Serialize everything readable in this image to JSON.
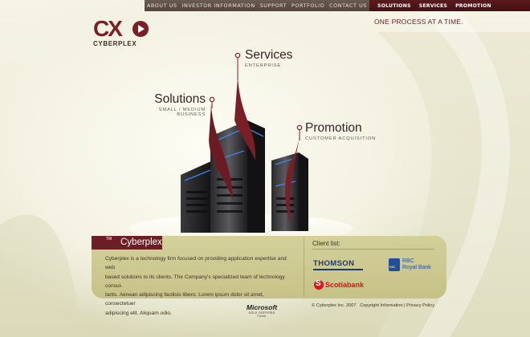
{
  "nav": {
    "left_items": [
      "ABOUT US",
      "INVESTOR INFORMATION",
      "SUPPORT",
      "PORTFOLIO",
      "CONTACT US"
    ],
    "right_items": [
      "SOLUTIONS",
      "SERVICES",
      "PROMOTION"
    ]
  },
  "header": {
    "tagline": "ONE PROCESS AT A TIME."
  },
  "logo": {
    "mark": "CX",
    "wordmark": "CYBERPLEX"
  },
  "offerings": {
    "services": {
      "title": "Services",
      "subtitle": "ENTERPRISE"
    },
    "solutions": {
      "title": "Solutions",
      "subtitle": "SMALL / MEDIUM BUSINESS"
    },
    "promotion": {
      "title": "Promotion",
      "subtitle": "CUSTOMER ACQUISITION"
    }
  },
  "about": {
    "title": "Cyberplex",
    "title_mark": "TM",
    "lines": [
      "Cyberplex is a technology firm focused on providing application expertise and web",
      "based solutions to its clients. The Company's specialized team of technology consul-",
      "tants. Aenean adipiscing facilisis libero. Lorem ipsum dolor sit amet, consectetuer",
      "adipiscing elit. Aliquam odio."
    ]
  },
  "clients": {
    "title": "Client list:",
    "thomson": "THOMSON",
    "rbc_line1": "RBC",
    "rbc_line2": "Royal Bank",
    "rbc_badge": "RBC",
    "scotiabank": "Scotiabank"
  },
  "footer": {
    "copyright": "© Cyberplex Inc. 2007",
    "link_copyright": "Copyright Information",
    "separator": "|",
    "link_privacy": "Privacy Policy"
  },
  "partner": {
    "brand": "Microsoft",
    "cert": "GOLD CERTIFIED",
    "role": "Partner"
  },
  "colors": {
    "brand": "#7a1f26",
    "nav_dark": "#54443a",
    "nav_accent": "#461014",
    "panel": "#c9c58a"
  }
}
